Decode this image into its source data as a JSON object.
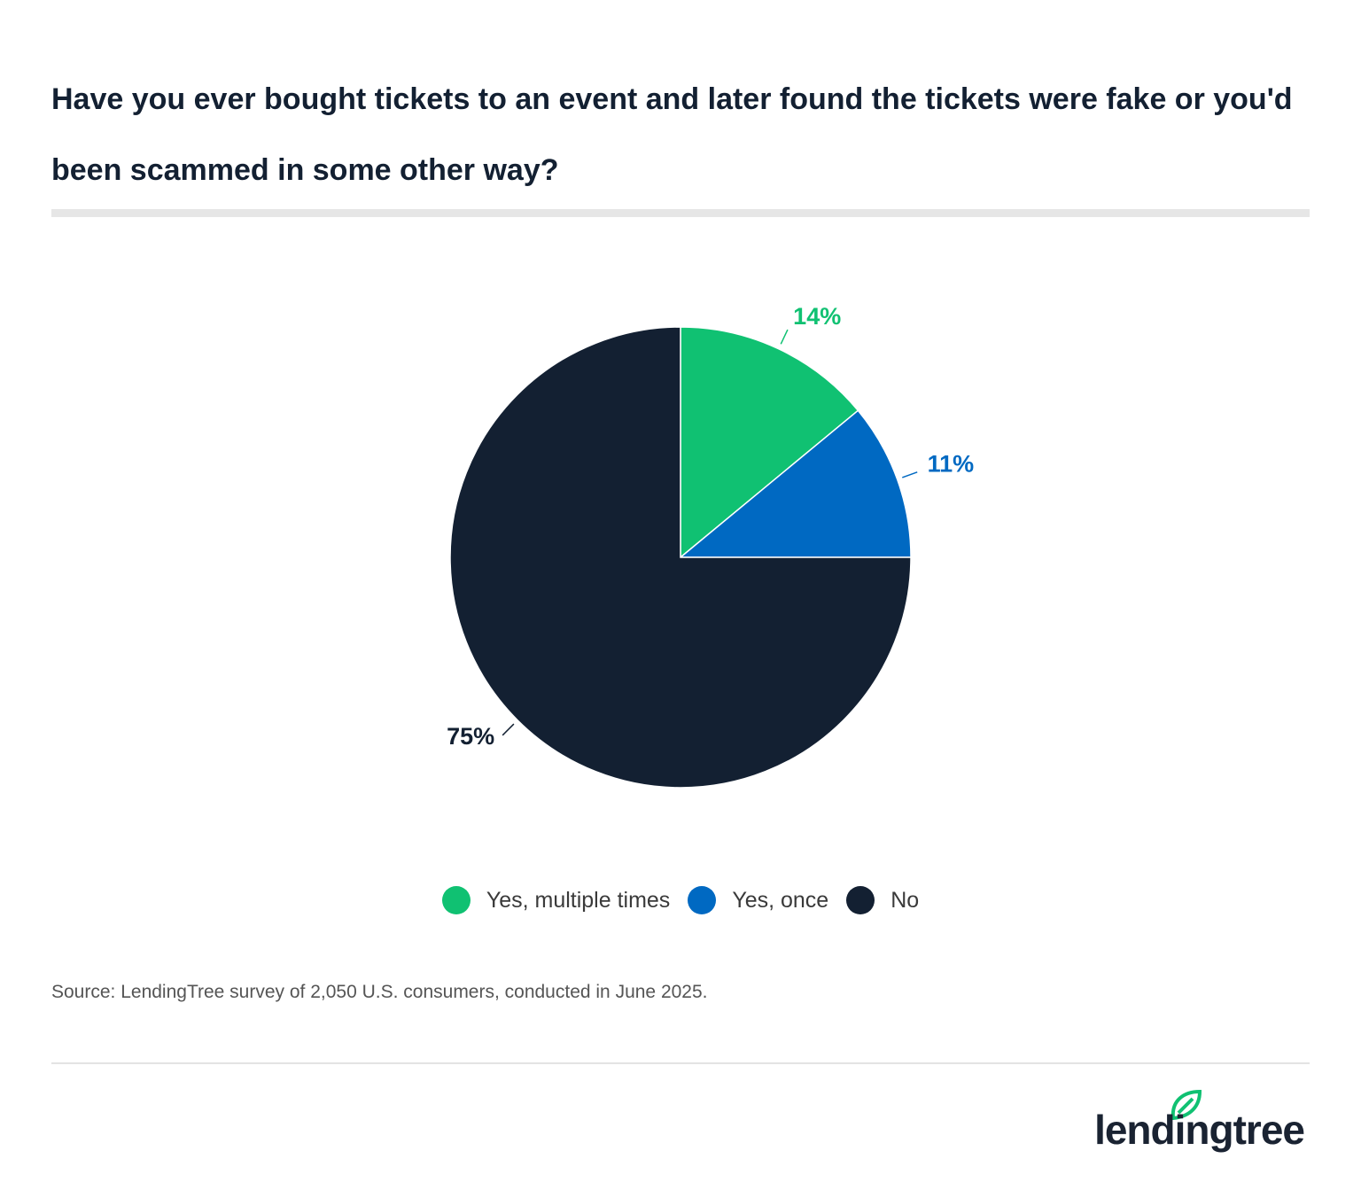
{
  "title": "Have you ever bought tickets to an event and later found the tickets were fake or you'd been scammed in some other way?",
  "chart_data": {
    "type": "pie",
    "categories": [
      "Yes, multiple times",
      "Yes, once",
      "No"
    ],
    "values": [
      14,
      11,
      75
    ],
    "value_labels": [
      "14%",
      "11%",
      "75%"
    ],
    "colors": [
      "#10c172",
      "#0069c2",
      "#132032"
    ]
  },
  "source": "Source: LendingTree survey of 2,050 U.S. consumers, conducted in June 2025.",
  "logo": "lendingtree"
}
